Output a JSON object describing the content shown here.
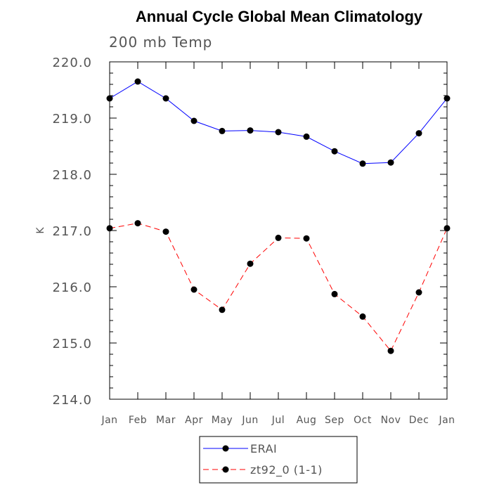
{
  "chart_data": {
    "type": "line",
    "title": "Annual Cycle Global Mean Climatology",
    "subtitle": "200 mb Temp",
    "xlabel": "",
    "ylabel": "K",
    "categories": [
      "Jan",
      "Feb",
      "Mar",
      "Apr",
      "May",
      "Jun",
      "Jul",
      "Aug",
      "Sep",
      "Oct",
      "Nov",
      "Dec",
      "Jan"
    ],
    "ylim": [
      214.0,
      220.0
    ],
    "yticks": [
      "214.0",
      "215.0",
      "216.0",
      "217.0",
      "218.0",
      "219.0",
      "220.0"
    ],
    "grid": false,
    "legend_position": "bottom-center",
    "series": [
      {
        "name": "ERAI",
        "color": "#0000ff",
        "line_style": "solid",
        "marker": "filled-circle",
        "values": [
          219.35,
          219.65,
          219.35,
          218.95,
          218.77,
          218.78,
          218.75,
          218.67,
          218.41,
          218.19,
          218.21,
          218.73,
          219.35
        ]
      },
      {
        "name": "zt92_0 (1-1)",
        "color": "#ff0000",
        "line_style": "dashed",
        "marker": "filled-circle",
        "values": [
          217.04,
          217.13,
          216.98,
          215.95,
          215.59,
          216.41,
          216.87,
          216.86,
          215.87,
          215.47,
          214.86,
          215.9,
          217.04
        ]
      }
    ]
  }
}
